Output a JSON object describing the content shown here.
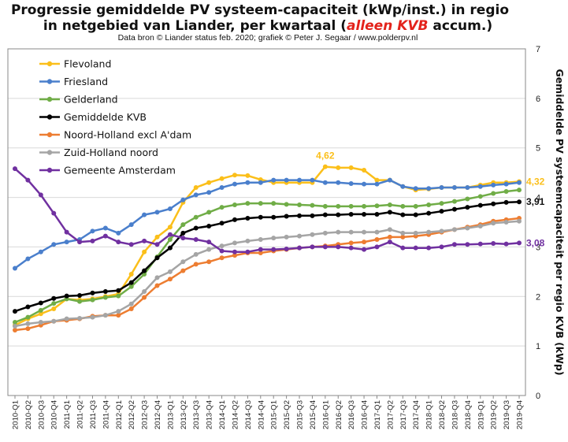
{
  "chart_data": {
    "type": "line",
    "title_line1": "Progressie gemiddelde PV systeem-capaciteit (kWp/inst.) in regio",
    "title_line2_pre": "in netgebied van Liander, per kwartaal (",
    "title_line2_em": "alleen KVB",
    "title_line2_post": " accum.)",
    "subtitle": "Data bron © Liander status feb. 2020; grafiek © Peter J. Segaar / www.polderpv.nl",
    "ylabel": "Gemiddelde PV systeemcapaciteit per regio KVB (kWp)",
    "ylim": [
      0,
      7
    ],
    "yticks": [
      "0",
      "1",
      "2",
      "3",
      "4",
      "5",
      "6",
      "7"
    ],
    "grid": true,
    "legend_position": "top-left",
    "categories": [
      "2010-Q1",
      "2010-Q2",
      "2010-Q3",
      "2010-Q4",
      "2011-Q1",
      "2011-Q2",
      "2011-Q3",
      "2011-Q4",
      "2012-Q1",
      "2012-Q2",
      "2012-Q3",
      "2012-Q4",
      "2013-Q1",
      "2013-Q2",
      "2013-Q3",
      "2013-Q4",
      "2014-Q1",
      "2014-Q2",
      "2014-Q3",
      "2014-Q4",
      "2015-Q1",
      "2015-Q2",
      "2015-Q3",
      "2015-Q4",
      "2016-Q1",
      "2016-Q2",
      "2016-Q3",
      "2016-Q4",
      "2017-Q1",
      "2017-Q2",
      "2017-Q3",
      "2017-Q4",
      "2018-Q1",
      "2018-Q2",
      "2018-Q3",
      "2018-Q4",
      "2019-Q1",
      "2019-Q2",
      "2019-Q3",
      "2019-Q4"
    ],
    "series": [
      {
        "name": "Flevoland",
        "color": "#fbbf1a",
        "values": [
          1.42,
          1.55,
          1.65,
          1.75,
          1.95,
          1.93,
          1.95,
          2.0,
          2.05,
          2.45,
          2.9,
          3.2,
          3.4,
          3.9,
          4.2,
          4.3,
          4.38,
          4.45,
          4.44,
          4.36,
          4.3,
          4.3,
          4.3,
          4.3,
          4.62,
          4.6,
          4.6,
          4.55,
          4.35,
          4.35,
          4.22,
          4.15,
          4.17,
          4.2,
          4.2,
          4.2,
          4.25,
          4.3,
          4.3,
          4.32
        ]
      },
      {
        "name": "Friesland",
        "color": "#4a7fcc",
        "values": [
          2.57,
          2.76,
          2.9,
          3.05,
          3.1,
          3.15,
          3.32,
          3.38,
          3.28,
          3.45,
          3.65,
          3.7,
          3.77,
          3.95,
          4.05,
          4.1,
          4.2,
          4.27,
          4.3,
          4.3,
          4.35,
          4.35,
          4.35,
          4.35,
          4.3,
          4.3,
          4.28,
          4.27,
          4.27,
          4.35,
          4.22,
          4.18,
          4.18,
          4.2,
          4.2,
          4.2,
          4.22,
          4.25,
          4.27,
          4.3
        ]
      },
      {
        "name": "Gelderland",
        "color": "#70ad47",
        "values": [
          1.48,
          1.58,
          1.72,
          1.86,
          1.95,
          1.9,
          1.93,
          1.98,
          2.01,
          2.2,
          2.45,
          2.8,
          3.15,
          3.45,
          3.6,
          3.7,
          3.8,
          3.85,
          3.88,
          3.88,
          3.88,
          3.86,
          3.85,
          3.84,
          3.82,
          3.82,
          3.82,
          3.82,
          3.83,
          3.85,
          3.82,
          3.82,
          3.85,
          3.88,
          3.92,
          3.97,
          4.02,
          4.08,
          4.12,
          4.15
        ]
      },
      {
        "name": "Gemiddelde KVB",
        "color": "#000000",
        "values": [
          1.7,
          1.79,
          1.87,
          1.96,
          2.01,
          2.02,
          2.07,
          2.1,
          2.12,
          2.28,
          2.52,
          2.78,
          2.98,
          3.28,
          3.38,
          3.42,
          3.48,
          3.55,
          3.58,
          3.6,
          3.6,
          3.62,
          3.63,
          3.63,
          3.65,
          3.65,
          3.66,
          3.66,
          3.66,
          3.7,
          3.65,
          3.65,
          3.68,
          3.72,
          3.76,
          3.8,
          3.84,
          3.87,
          3.9,
          3.91
        ]
      },
      {
        "name": "Noord-Holland excl A'dam",
        "color": "#ed7d31",
        "values": [
          1.32,
          1.35,
          1.42,
          1.5,
          1.52,
          1.55,
          1.6,
          1.62,
          1.62,
          1.75,
          1.98,
          2.22,
          2.35,
          2.52,
          2.65,
          2.7,
          2.78,
          2.83,
          2.88,
          2.88,
          2.92,
          2.95,
          2.98,
          3.0,
          3.02,
          3.05,
          3.08,
          3.1,
          3.15,
          3.2,
          3.2,
          3.22,
          3.25,
          3.3,
          3.35,
          3.4,
          3.45,
          3.52,
          3.55,
          3.58
        ]
      },
      {
        "name": "Zuid-Holland noord",
        "color": "#a5a5a5",
        "values": [
          1.4,
          1.45,
          1.48,
          1.5,
          1.55,
          1.56,
          1.58,
          1.62,
          1.7,
          1.85,
          2.1,
          2.38,
          2.5,
          2.7,
          2.85,
          2.95,
          3.02,
          3.08,
          3.12,
          3.15,
          3.18,
          3.2,
          3.22,
          3.25,
          3.28,
          3.3,
          3.3,
          3.3,
          3.3,
          3.35,
          3.28,
          3.28,
          3.3,
          3.32,
          3.35,
          3.38,
          3.42,
          3.48,
          3.5,
          3.52
        ]
      },
      {
        "name": "Gemeente Amsterdam",
        "color": "#7030a0",
        "values": [
          4.58,
          4.35,
          4.05,
          3.68,
          3.3,
          3.1,
          3.12,
          3.22,
          3.1,
          3.05,
          3.12,
          3.05,
          3.25,
          3.18,
          3.15,
          3.1,
          2.92,
          2.9,
          2.9,
          2.95,
          2.95,
          2.96,
          2.98,
          3.0,
          3.0,
          3.0,
          2.98,
          2.95,
          3.0,
          3.1,
          2.98,
          2.98,
          2.98,
          3.0,
          3.05,
          3.05,
          3.06,
          3.07,
          3.06,
          3.08
        ]
      }
    ],
    "annotations": [
      {
        "text": "4,62",
        "series": "Flevoland",
        "index": 24,
        "color": "#fbbf1a",
        "placement": "above"
      },
      {
        "text": "4,32",
        "series": "Flevoland",
        "index": 39,
        "color": "#fbbf1a",
        "placement": "right"
      },
      {
        "text": "3,91",
        "series": "Gemiddelde KVB",
        "index": 39,
        "color": "#111111",
        "placement": "right"
      },
      {
        "text": "3,08",
        "series": "Gemeente Amsterdam",
        "index": 39,
        "color": "#7030a0",
        "placement": "right"
      }
    ]
  }
}
